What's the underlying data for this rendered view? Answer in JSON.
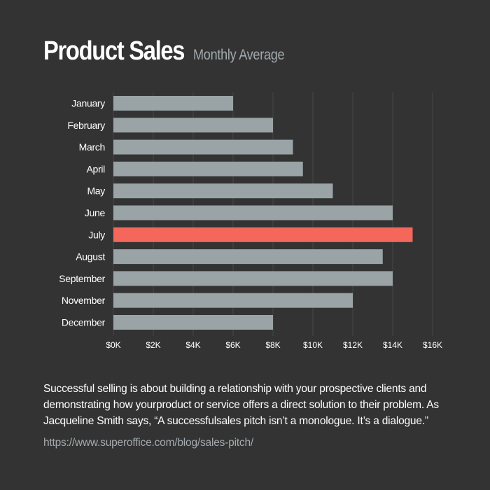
{
  "header": {
    "title": "Product Sales",
    "subtitle": "Monthly Average"
  },
  "chart_data": {
    "type": "bar",
    "orientation": "horizontal",
    "title": "Product Sales",
    "subtitle": "Monthly Average",
    "categories": [
      "January",
      "February",
      "March",
      "April",
      "May",
      "June",
      "July",
      "August",
      "September",
      "November",
      "December"
    ],
    "values": [
      6000,
      8000,
      9000,
      9500,
      11000,
      14000,
      15000,
      13500,
      14000,
      12000,
      8000
    ],
    "xlim": [
      0,
      16000
    ],
    "x_ticks": [
      0,
      2000,
      4000,
      6000,
      8000,
      10000,
      12000,
      14000,
      16000
    ],
    "x_tick_labels": [
      "$0K",
      "$2K",
      "$4K",
      "$6K",
      "$8K",
      "$10K",
      "$12K",
      "$14K",
      "$16K"
    ],
    "xlabel": "",
    "ylabel": "",
    "grid": true,
    "highlight_category": "July",
    "colors": {
      "bar": "#9aa3a6",
      "highlight": "#f5675a",
      "grid": "#474747",
      "label": "#ffffff"
    }
  },
  "footer": {
    "description": "Successful selling is about building a relationship with your prospective clients and demonstrating how yourproduct or service offers a direct solution to their problem. As Jacqueline Smith says, “A successfulsales pitch isn’t a monologue. It’s a dialogue.”",
    "source_url": "https://www.superoffice.com/blog/sales-pitch/"
  }
}
